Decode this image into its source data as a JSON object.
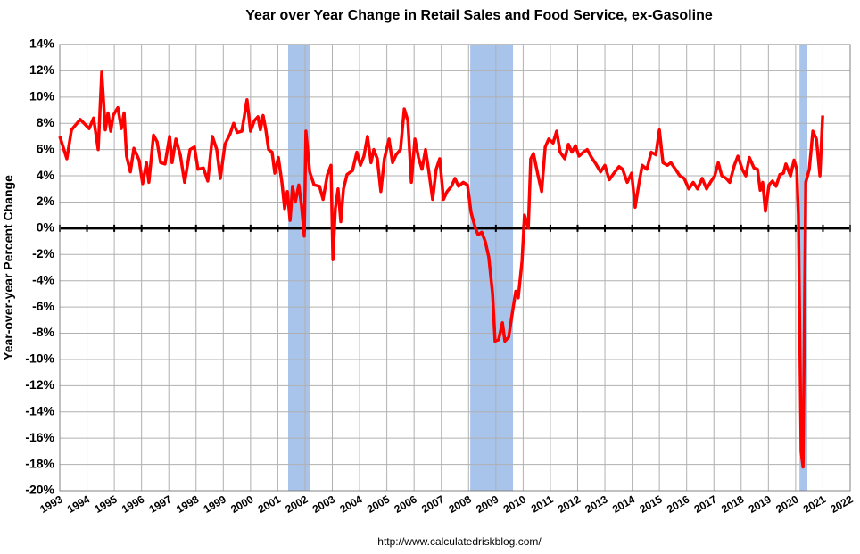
{
  "chart_data": {
    "type": "line",
    "title": "Year over Year Change in Retail Sales and Food Service, ex-Gasoline",
    "y_label": "Year-over-year Percent Change",
    "source": "http://www.calculatedriskblog.com/",
    "color": "#ff0000",
    "grid": true,
    "shade_color": "#a9c4eb",
    "shaded_periods": [
      [
        2001.38,
        2002.17
      ],
      [
        2008.06,
        2009.63
      ],
      [
        2020.14,
        2020.43
      ]
    ],
    "xlim": [
      1993,
      2022
    ],
    "xticks": [
      1993,
      1994,
      1995,
      1996,
      1997,
      1998,
      1999,
      2000,
      2001,
      2002,
      2003,
      2004,
      2005,
      2006,
      2007,
      2008,
      2009,
      2010,
      2011,
      2012,
      2013,
      2014,
      2015,
      2016,
      2017,
      2018,
      2019,
      2020,
      2021,
      2022
    ],
    "ylim": [
      -20,
      14
    ],
    "yticks": [
      {
        "value": -20,
        "label": "-20%"
      },
      {
        "value": -18,
        "label": "-18%"
      },
      {
        "value": -16,
        "label": "-16%"
      },
      {
        "value": -14,
        "label": "-14%"
      },
      {
        "value": -12,
        "label": "-12%"
      },
      {
        "value": -10,
        "label": "-10%"
      },
      {
        "value": -8,
        "label": "-8%"
      },
      {
        "value": -6,
        "label": "-6%"
      },
      {
        "value": -4,
        "label": "-4%"
      },
      {
        "value": -2,
        "label": "-2%"
      },
      {
        "value": 0,
        "label": "0%"
      },
      {
        "value": 2,
        "label": "2%"
      },
      {
        "value": 4,
        "label": "4%"
      },
      {
        "value": 6,
        "label": "6%"
      },
      {
        "value": 8,
        "label": "8%"
      },
      {
        "value": 10,
        "label": "10%"
      },
      {
        "value": 12,
        "label": "12%"
      },
      {
        "value": 14,
        "label": "14%"
      }
    ],
    "x": [
      1993.0,
      1993.26,
      1993.43,
      1993.75,
      1994.08,
      1994.24,
      1994.41,
      1994.54,
      1994.67,
      1994.77,
      1994.87,
      1994.96,
      1995.13,
      1995.26,
      1995.36,
      1995.45,
      1995.59,
      1995.72,
      1995.91,
      1996.04,
      1996.18,
      1996.27,
      1996.44,
      1996.57,
      1996.7,
      1996.86,
      1997.03,
      1997.12,
      1997.26,
      1997.42,
      1997.58,
      1997.78,
      1997.94,
      1998.07,
      1998.27,
      1998.43,
      1998.6,
      1998.76,
      1998.89,
      1999.06,
      1999.25,
      1999.38,
      1999.51,
      1999.68,
      1999.87,
      2000.0,
      2000.14,
      2000.27,
      2000.36,
      2000.46,
      2000.56,
      2000.66,
      2000.79,
      2000.89,
      2001.02,
      2001.15,
      2001.25,
      2001.35,
      2001.45,
      2001.54,
      2001.64,
      2001.77,
      2001.87,
      2001.97,
      2002.03,
      2002.17,
      2002.33,
      2002.53,
      2002.66,
      2002.82,
      2002.95,
      2003.02,
      2003.11,
      2003.21,
      2003.31,
      2003.41,
      2003.54,
      2003.74,
      2003.9,
      2004.03,
      2004.16,
      2004.29,
      2004.42,
      2004.52,
      2004.65,
      2004.78,
      2004.91,
      2005.08,
      2005.21,
      2005.34,
      2005.5,
      2005.64,
      2005.77,
      2005.9,
      2006.03,
      2006.16,
      2006.29,
      2006.42,
      2006.55,
      2006.68,
      2006.81,
      2006.94,
      2007.08,
      2007.21,
      2007.37,
      2007.5,
      2007.63,
      2007.8,
      2007.96,
      2008.09,
      2008.25,
      2008.35,
      2008.48,
      2008.61,
      2008.74,
      2008.88,
      2008.97,
      2009.1,
      2009.24,
      2009.33,
      2009.47,
      2009.6,
      2009.73,
      2009.82,
      2009.96,
      2010.05,
      2010.19,
      2010.28,
      2010.38,
      2010.55,
      2010.68,
      2010.81,
      2010.94,
      2011.1,
      2011.23,
      2011.36,
      2011.53,
      2011.66,
      2011.79,
      2011.92,
      2012.05,
      2012.21,
      2012.35,
      2012.51,
      2012.67,
      2012.84,
      2013.0,
      2013.16,
      2013.33,
      2013.52,
      2013.65,
      2013.82,
      2013.98,
      2014.11,
      2014.24,
      2014.37,
      2014.54,
      2014.7,
      2014.87,
      2015.0,
      2015.13,
      2015.29,
      2015.42,
      2015.59,
      2015.75,
      2015.91,
      2016.08,
      2016.24,
      2016.4,
      2016.57,
      2016.73,
      2016.9,
      2017.03,
      2017.16,
      2017.29,
      2017.45,
      2017.58,
      2017.75,
      2017.88,
      2018.04,
      2018.17,
      2018.3,
      2018.47,
      2018.6,
      2018.7,
      2018.79,
      2018.89,
      2019.02,
      2019.15,
      2019.28,
      2019.42,
      2019.55,
      2019.64,
      2019.81,
      2019.94,
      2020.04,
      2020.1,
      2020.2,
      2020.27,
      2020.37,
      2020.5,
      2020.63,
      2020.76,
      2020.89,
      2020.99
    ],
    "values": [
      7.0,
      5.3,
      7.5,
      8.3,
      7.6,
      8.4,
      6.0,
      11.9,
      7.5,
      8.8,
      7.4,
      8.6,
      9.2,
      7.6,
      8.8,
      5.5,
      4.3,
      6.1,
      5.2,
      3.4,
      5.0,
      3.5,
      7.1,
      6.6,
      5.0,
      4.9,
      7.0,
      5.0,
      6.8,
      5.6,
      3.5,
      6.0,
      6.2,
      4.5,
      4.6,
      3.6,
      7.0,
      6.0,
      3.8,
      6.4,
      7.2,
      8.0,
      7.3,
      7.4,
      9.8,
      7.4,
      8.2,
      8.5,
      7.5,
      8.6,
      7.5,
      6.0,
      5.8,
      4.2,
      5.4,
      3.5,
      1.5,
      2.8,
      0.6,
      3.2,
      2.0,
      3.3,
      1.7,
      -0.6,
      7.4,
      4.3,
      3.3,
      3.2,
      2.2,
      4.1,
      4.8,
      -2.4,
      1.5,
      3.0,
      0.5,
      3.0,
      4.1,
      4.4,
      5.8,
      4.8,
      5.5,
      7.0,
      5.0,
      6.0,
      5.3,
      2.8,
      5.3,
      6.8,
      5.0,
      5.6,
      6.0,
      9.1,
      8.2,
      3.5,
      6.8,
      5.4,
      4.5,
      6.0,
      4.2,
      2.2,
      4.5,
      5.3,
      2.2,
      2.8,
      3.2,
      3.8,
      3.2,
      3.5,
      3.3,
      1.2,
      0.0,
      -0.5,
      -0.3,
      -1.0,
      -2.2,
      -5.0,
      -8.6,
      -8.5,
      -7.2,
      -8.6,
      -8.3,
      -6.5,
      -4.8,
      -5.3,
      -2.5,
      1.0,
      0.0,
      5.3,
      5.7,
      4.0,
      2.8,
      6.2,
      6.8,
      6.5,
      7.4,
      5.8,
      5.3,
      6.4,
      5.8,
      6.3,
      5.5,
      5.8,
      6.0,
      5.4,
      4.9,
      4.3,
      4.8,
      3.7,
      4.2,
      4.7,
      4.5,
      3.5,
      4.2,
      1.6,
      3.3,
      4.8,
      4.5,
      5.8,
      5.6,
      7.5,
      5.0,
      4.8,
      5.0,
      4.5,
      4.0,
      3.8,
      3.0,
      3.5,
      3.0,
      3.8,
      3.0,
      3.6,
      4.0,
      5.0,
      4.0,
      3.8,
      3.5,
      4.8,
      5.5,
      4.5,
      4.0,
      5.4,
      4.6,
      4.5,
      2.9,
      3.5,
      1.3,
      3.3,
      3.6,
      3.2,
      4.1,
      4.2,
      4.9,
      4.0,
      5.2,
      4.5,
      1.0,
      -17.0,
      -18.2,
      3.5,
      4.5,
      7.4,
      6.8,
      4.0,
      8.6
    ]
  }
}
